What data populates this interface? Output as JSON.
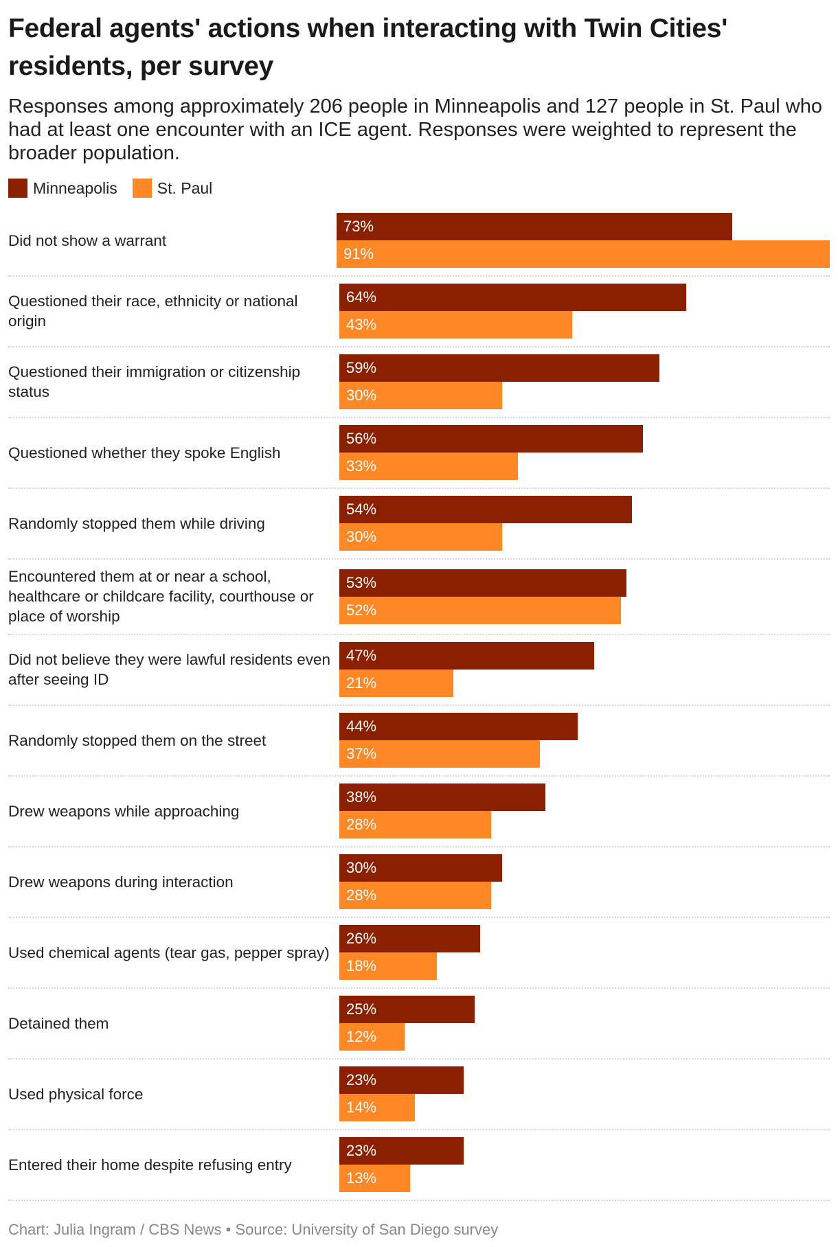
{
  "title": "Federal agents' actions when interacting with Twin Cities' residents, per survey",
  "subtitle": "Responses among approximately 206 people in Minneapolis and 127 people in St. Paul who had at least one encounter with an ICE agent. Responses were weighted to represent the broader population.",
  "footer": {
    "credit": "Chart: Julia Ingram / CBS News",
    "separator": "•",
    "source": "Source: University of San Diego survey"
  },
  "chart_data": {
    "type": "bar",
    "orientation": "horizontal",
    "xlim": [
      0,
      91
    ],
    "grid": false,
    "legend_position": "top-left",
    "series": [
      {
        "name": "Minneapolis",
        "color": "#8a2000",
        "values": [
          73,
          64,
          59,
          56,
          54,
          53,
          47,
          44,
          38,
          30,
          26,
          25,
          23,
          23
        ]
      },
      {
        "name": "St. Paul",
        "color": "#fe8826",
        "values": [
          91,
          43,
          30,
          33,
          30,
          52,
          21,
          37,
          28,
          28,
          18,
          12,
          14,
          13
        ]
      }
    ],
    "categories": [
      "Did not show a warrant",
      "Questioned their race, ethnicity or national origin",
      "Questioned their immigration or citizenship status",
      "Questioned whether they spoke English",
      "Randomly stopped them while driving",
      "Encountered them at or near a school, healthcare or childcare facility, courthouse or place of worship",
      "Did not believe they were lawful residents even after seeing ID",
      "Randomly stopped them on the street",
      "Drew weapons while approaching",
      "Drew weapons during interaction",
      "Used chemical agents (tear gas, pepper spray)",
      "Detained them",
      "Used physical force",
      "Entered their home despite refusing entry"
    ]
  }
}
